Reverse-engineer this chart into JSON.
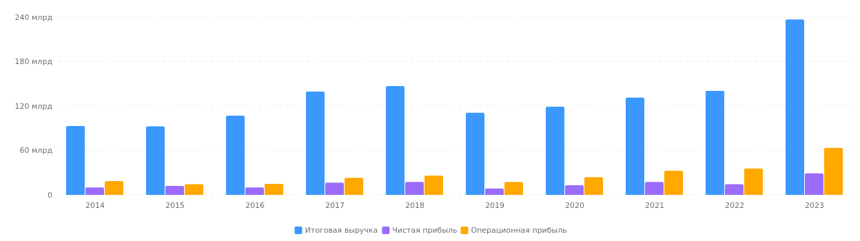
{
  "chart_data": {
    "type": "bar",
    "categories": [
      "2014",
      "2015",
      "2016",
      "2017",
      "2018",
      "2019",
      "2020",
      "2021",
      "2022",
      "2023"
    ],
    "series": [
      {
        "name": "Итоговая выручка",
        "color": "#3a98ff",
        "values": [
          93,
          92.5,
          107,
          139.5,
          147,
          111,
          119,
          131.5,
          140.5,
          237
        ]
      },
      {
        "name": "Чистая прибыль",
        "color": "#9b6cf9",
        "values": [
          10,
          12,
          10,
          16.5,
          17.5,
          8.5,
          13,
          17.5,
          14.5,
          29
        ]
      },
      {
        "name": "Операционная прибыль",
        "color": "#ffa800",
        "values": [
          18.5,
          14.5,
          15,
          23,
          26,
          17.5,
          24,
          32.5,
          35.5,
          63.5
        ]
      }
    ],
    "ylim": [
      0,
      240
    ],
    "yticks": [
      {
        "value": 0,
        "label": "0"
      },
      {
        "value": 60,
        "label": "60 млрд"
      },
      {
        "value": 120,
        "label": "120 млрд"
      },
      {
        "value": 180,
        "label": "180 млрд"
      },
      {
        "value": 240,
        "label": "240 млрд"
      }
    ],
    "grid": "y",
    "legend": "bottom"
  }
}
